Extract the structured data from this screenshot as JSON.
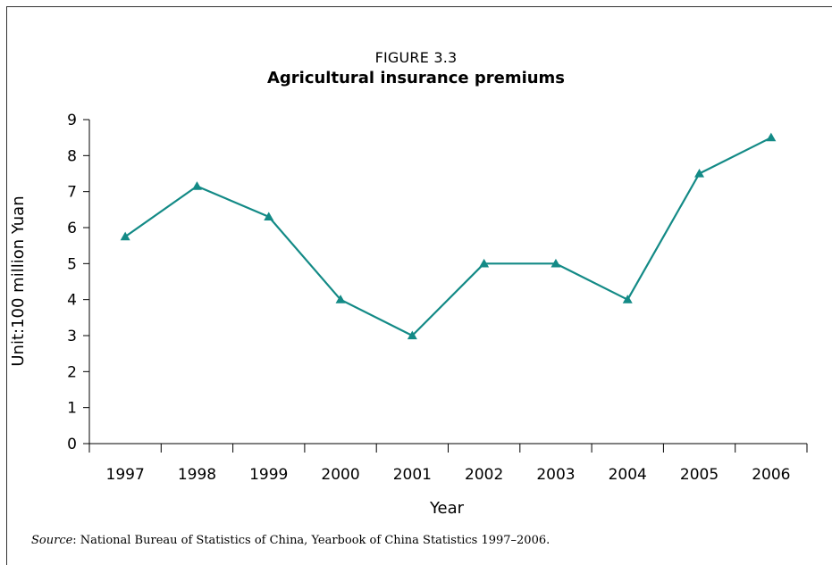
{
  "figure": {
    "label": "FIGURE 3.3",
    "title": "Agricultural insurance premiums",
    "source_prefix": "Source",
    "source_text": ": National Bureau of Statistics of China, Yearbook of China Statistics 1997–2006."
  },
  "colors": {
    "series": "#138a86",
    "axis": "#000000"
  },
  "chart_data": {
    "type": "line",
    "title": "Agricultural insurance premiums",
    "xlabel": "Year",
    "ylabel": "Unit:100 million Yuan",
    "categories": [
      "1997",
      "1998",
      "1999",
      "2000",
      "2001",
      "2002",
      "2003",
      "2004",
      "2005",
      "2006"
    ],
    "series": [
      {
        "marker": "triangle",
        "values": [
          5.75,
          7.15,
          6.3,
          4.0,
          3.0,
          5.0,
          5.0,
          4.0,
          7.5,
          8.5
        ]
      }
    ],
    "ylim": [
      0,
      9
    ],
    "yticks": [
      0,
      1,
      2,
      3,
      4,
      5,
      6,
      7,
      8,
      9
    ],
    "grid": false,
    "legend": "none"
  }
}
